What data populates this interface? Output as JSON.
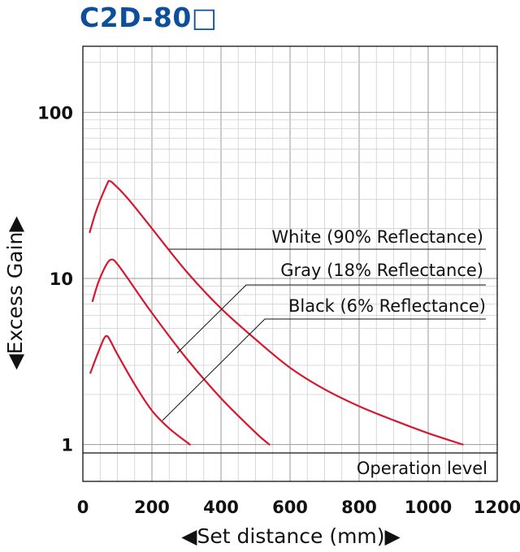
{
  "chart_data": {
    "type": "line",
    "title": "C2D-80□",
    "xlabel": "◀Set distance (mm)▶",
    "ylabel": "◀Excess Gain▶",
    "x_ticks": [
      0,
      200,
      400,
      600,
      800,
      1000,
      1200
    ],
    "y_ticks": [
      1,
      10,
      100
    ],
    "xlim": [
      0,
      1200
    ],
    "ylim": [
      0.6,
      250
    ],
    "y_scale": "log",
    "grid": true,
    "series": [
      {
        "name": "White (90% Reflectance)",
        "color": "#d7162f",
        "points": [
          [
            20,
            19
          ],
          [
            40,
            26
          ],
          [
            70,
            37
          ],
          [
            78,
            38.5
          ],
          [
            90,
            37
          ],
          [
            120,
            32
          ],
          [
            150,
            27
          ],
          [
            200,
            20
          ],
          [
            300,
            11
          ],
          [
            400,
            6.6
          ],
          [
            500,
            4.3
          ],
          [
            600,
            2.9
          ],
          [
            700,
            2.15
          ],
          [
            800,
            1.7
          ],
          [
            900,
            1.4
          ],
          [
            1000,
            1.17
          ],
          [
            1100,
            1.0
          ]
        ]
      },
      {
        "name": "Gray (18% Reflectance)",
        "color": "#d7162f",
        "points": [
          [
            28,
            7.3
          ],
          [
            45,
            9.5
          ],
          [
            70,
            12.3
          ],
          [
            85,
            13.0
          ],
          [
            100,
            12.2
          ],
          [
            130,
            10.0
          ],
          [
            200,
            6.2
          ],
          [
            300,
            3.3
          ],
          [
            400,
            1.9
          ],
          [
            500,
            1.18
          ],
          [
            540,
            1.0
          ]
        ]
      },
      {
        "name": "Black (6% Reflectance)",
        "color": "#d7162f",
        "points": [
          [
            22,
            2.7
          ],
          [
            40,
            3.4
          ],
          [
            60,
            4.3
          ],
          [
            70,
            4.5
          ],
          [
            80,
            4.2
          ],
          [
            100,
            3.5
          ],
          [
            150,
            2.3
          ],
          [
            200,
            1.6
          ],
          [
            250,
            1.25
          ],
          [
            310,
            1.0
          ]
        ]
      }
    ],
    "annotations": [
      "White (90% Reflectance)",
      "Gray (18% Reflectance)",
      "Black (6% Reflectance)",
      "Operation level"
    ]
  }
}
